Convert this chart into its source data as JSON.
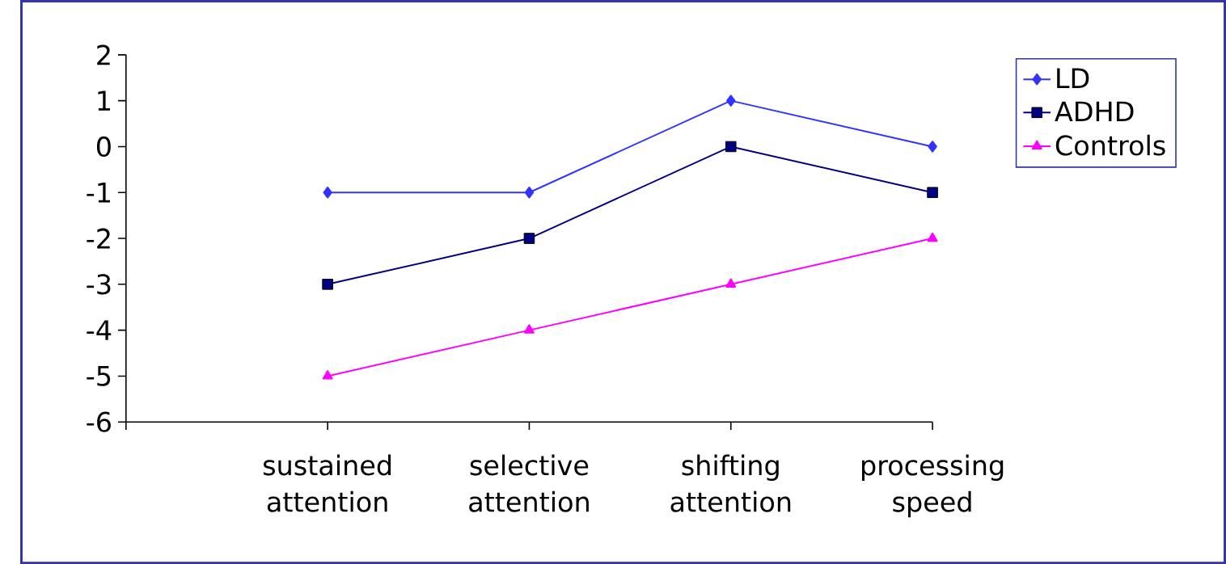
{
  "chart_data": {
    "type": "line",
    "categories": [
      null,
      "sustained attention",
      "selective attention",
      "shifting attention",
      "processing speed"
    ],
    "series": [
      {
        "name": "LD",
        "color": "#3333ff",
        "marker": "diamond",
        "values": [
          null,
          -1,
          -1,
          1,
          0
        ]
      },
      {
        "name": "ADHD",
        "color": "#000080",
        "marker": "square",
        "values": [
          null,
          -3,
          -2,
          0,
          -1
        ]
      },
      {
        "name": "Controls",
        "color": "#ff00ff",
        "marker": "triangle",
        "values": [
          null,
          -5,
          -4,
          -3,
          -2
        ]
      }
    ],
    "ylim": [
      -6,
      2
    ],
    "yticks": [
      -6,
      -5,
      -4,
      -3,
      -2,
      -1,
      0,
      1,
      2
    ],
    "grid": false,
    "legend": "top right",
    "line_style": "solid"
  }
}
